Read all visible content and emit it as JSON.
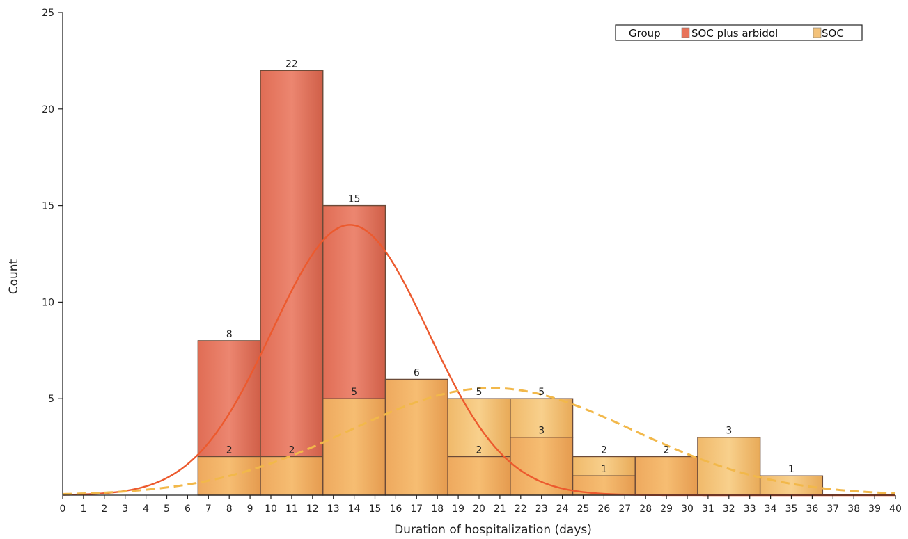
{
  "chart_data": {
    "type": "bar",
    "xlabel": "Duration of hospitalization (days)",
    "ylabel": "Count",
    "xlim": [
      0,
      40
    ],
    "ylim": [
      0,
      25
    ],
    "x_ticks": [
      0,
      1,
      2,
      3,
      4,
      5,
      6,
      7,
      8,
      9,
      10,
      11,
      12,
      13,
      14,
      15,
      16,
      17,
      18,
      19,
      20,
      21,
      22,
      23,
      24,
      25,
      26,
      27,
      28,
      29,
      30,
      31,
      32,
      33,
      34,
      35,
      36,
      37,
      38,
      39,
      40
    ],
    "y_ticks": [
      5,
      10,
      15,
      20,
      25
    ],
    "grid": false,
    "legend": {
      "title": "Group",
      "placement": "top-right",
      "entries": [
        "SOC plus arbidol",
        "SOC"
      ]
    },
    "bins": [
      {
        "start": 6.5,
        "end": 9.5
      },
      {
        "start": 9.5,
        "end": 12.5
      },
      {
        "start": 12.5,
        "end": 15.5
      },
      {
        "start": 15.5,
        "end": 18.5
      },
      {
        "start": 18.5,
        "end": 21.5
      },
      {
        "start": 21.5,
        "end": 24.5
      },
      {
        "start": 24.5,
        "end": 27.5
      },
      {
        "start": 27.5,
        "end": 30.5
      },
      {
        "start": 30.5,
        "end": 33.5
      },
      {
        "start": 33.5,
        "end": 36.5
      }
    ],
    "series": [
      {
        "name": "SOC plus arbidol",
        "color": "#e8735a",
        "values": [
          8,
          22,
          15,
          6,
          2,
          3,
          1,
          2,
          0,
          0
        ],
        "fit": {
          "kind": "normal",
          "style": "solid",
          "color": "#ec5a2e",
          "peak": 14.0,
          "mean": 13.8,
          "sd": 3.75
        }
      },
      {
        "name": "SOC",
        "color": "#f3c27a",
        "values": [
          2,
          2,
          5,
          6,
          5,
          5,
          2,
          2,
          3,
          1
        ],
        "fit": {
          "kind": "normal",
          "style": "dashed",
          "color": "#f2b84a",
          "peak": 5.55,
          "mean": 20.6,
          "sd": 6.8
        }
      }
    ]
  }
}
